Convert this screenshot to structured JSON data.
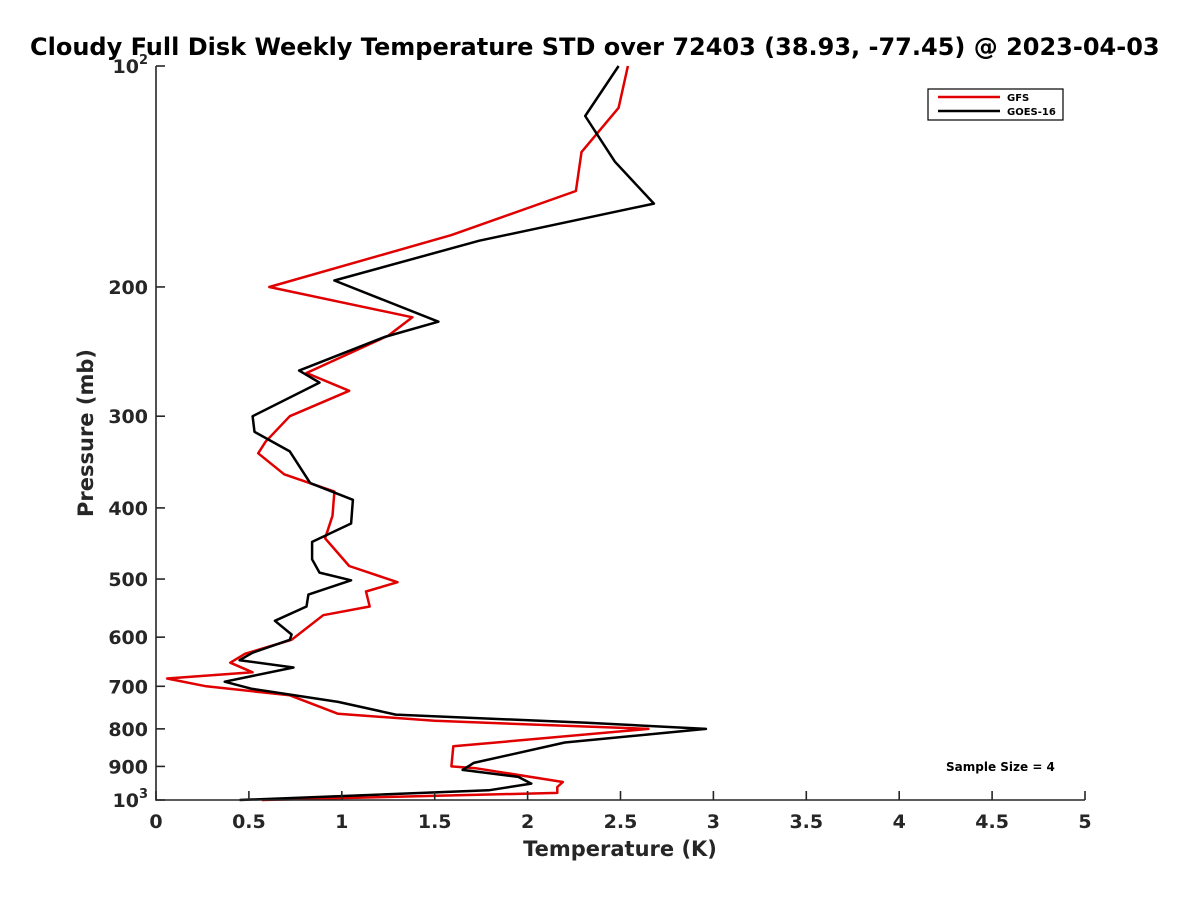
{
  "chart_data": {
    "type": "line",
    "title": "Cloudy Full Disk Weekly Temperature STD over 72403 (38.93, -77.45) @ 2023-04-03",
    "xlabel": "Temperature (K)",
    "ylabel": "Pressure (mb)",
    "xlim": [
      0,
      5
    ],
    "ylim": [
      100,
      1000
    ],
    "y_scale": "log",
    "y_reversed": true,
    "x_ticks": [
      0,
      0.5,
      1,
      1.5,
      2,
      2.5,
      3,
      3.5,
      4,
      4.5,
      5
    ],
    "x_tick_labels": [
      "0",
      "0.5",
      "1",
      "1.5",
      "2",
      "2.5",
      "3",
      "3.5",
      "4",
      "4.5",
      "5"
    ],
    "y_ticks": [
      100,
      200,
      300,
      400,
      500,
      600,
      700,
      800,
      900,
      1000
    ],
    "y_tick_labels": [
      {
        "base": "10",
        "exp": "2"
      },
      {
        "base": "200",
        "exp": ""
      },
      {
        "base": "300",
        "exp": ""
      },
      {
        "base": "400",
        "exp": ""
      },
      {
        "base": "500",
        "exp": ""
      },
      {
        "base": "600",
        "exp": ""
      },
      {
        "base": "700",
        "exp": ""
      },
      {
        "base": "800",
        "exp": ""
      },
      {
        "base": "900",
        "exp": ""
      },
      {
        "base": "10",
        "exp": "3"
      }
    ],
    "grid": false,
    "legend_position": "top-right",
    "annotation": "Sample Size = 4",
    "series": [
      {
        "name": "GFS",
        "color": "#e00000",
        "points": [
          [
            2.54,
            100
          ],
          [
            2.49,
            114
          ],
          [
            2.29,
            131
          ],
          [
            2.26,
            148
          ],
          [
            1.59,
            170
          ],
          [
            0.61,
            200
          ],
          [
            1.38,
            220
          ],
          [
            1.25,
            233
          ],
          [
            0.81,
            262
          ],
          [
            1.04,
            277
          ],
          [
            0.72,
            300
          ],
          [
            0.59,
            325
          ],
          [
            0.55,
            337
          ],
          [
            0.69,
            360
          ],
          [
            0.96,
            380
          ],
          [
            0.95,
            410
          ],
          [
            0.91,
            440
          ],
          [
            1.04,
            480
          ],
          [
            1.3,
            505
          ],
          [
            1.13,
            520
          ],
          [
            1.15,
            545
          ],
          [
            0.9,
            560
          ],
          [
            0.73,
            605
          ],
          [
            0.48,
            632
          ],
          [
            0.4,
            650
          ],
          [
            0.52,
            670
          ],
          [
            0.06,
            683
          ],
          [
            0.27,
            700
          ],
          [
            0.72,
            720
          ],
          [
            0.98,
            763
          ],
          [
            1.5,
            780
          ],
          [
            2.65,
            800
          ],
          [
            1.6,
            845
          ],
          [
            1.59,
            900
          ],
          [
            1.72,
            905
          ],
          [
            2.19,
            945
          ],
          [
            2.16,
            960
          ],
          [
            2.16,
            978
          ],
          [
            0.57,
            1000
          ]
        ]
      },
      {
        "name": "GOES-16",
        "color": "#000000",
        "points": [
          [
            2.49,
            100
          ],
          [
            2.31,
            117
          ],
          [
            2.47,
            135
          ],
          [
            2.68,
            154
          ],
          [
            1.74,
            173
          ],
          [
            0.96,
            196
          ],
          [
            1.52,
            223
          ],
          [
            1.23,
            234
          ],
          [
            0.77,
            260
          ],
          [
            0.88,
            270
          ],
          [
            0.52,
            300
          ],
          [
            0.53,
            315
          ],
          [
            0.72,
            335
          ],
          [
            0.83,
            370
          ],
          [
            1.06,
            390
          ],
          [
            1.05,
            420
          ],
          [
            0.84,
            445
          ],
          [
            0.84,
            470
          ],
          [
            0.88,
            490
          ],
          [
            1.05,
            502
          ],
          [
            0.82,
            525
          ],
          [
            0.81,
            545
          ],
          [
            0.64,
            570
          ],
          [
            0.73,
            595
          ],
          [
            0.72,
            605
          ],
          [
            0.52,
            630
          ],
          [
            0.45,
            645
          ],
          [
            0.74,
            660
          ],
          [
            0.37,
            690
          ],
          [
            0.51,
            705
          ],
          [
            0.98,
            735
          ],
          [
            1.29,
            765
          ],
          [
            2.32,
            785
          ],
          [
            2.96,
            800
          ],
          [
            2.2,
            835
          ],
          [
            1.71,
            890
          ],
          [
            1.65,
            910
          ],
          [
            1.95,
            930
          ],
          [
            2.02,
            950
          ],
          [
            1.79,
            970
          ],
          [
            0.45,
            1000
          ]
        ]
      }
    ]
  }
}
